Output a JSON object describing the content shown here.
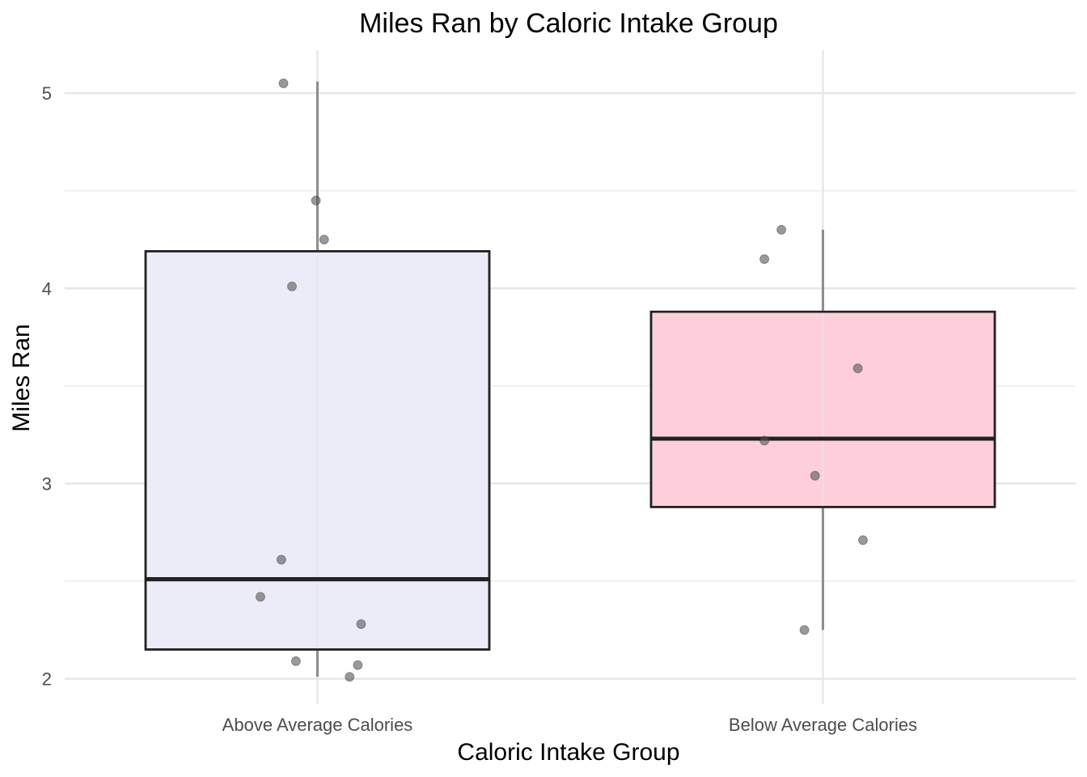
{
  "chart_data": {
    "type": "box",
    "title": "Miles Ran by Caloric Intake Group",
    "xlabel": "Caloric Intake Group",
    "ylabel": "Miles Ran",
    "categories": [
      "Above Average Calories",
      "Below Average Calories"
    ],
    "ylim": [
      1.87,
      5.22
    ],
    "yticks": [
      2,
      3,
      4,
      5
    ],
    "grid": true,
    "legend": "none",
    "boxes": [
      {
        "category": "Above Average Calories",
        "fill": "#ECEBF8",
        "whisker_low": 2.01,
        "q1": 2.15,
        "median": 2.51,
        "q3": 4.19,
        "whisker_high": 5.06
      },
      {
        "category": "Below Average Calories",
        "fill": "#FECFDB",
        "whisker_low": 2.25,
        "q1": 2.88,
        "median": 3.23,
        "q3": 3.88,
        "whisker_high": 4.3
      }
    ],
    "points": [
      {
        "category": "Above Average Calories",
        "values": [
          5.05,
          4.45,
          4.25,
          4.01,
          2.61,
          2.42,
          2.28,
          2.09,
          2.07,
          2.01
        ],
        "jitter": [
          -0.112,
          -0.005,
          0.022,
          -0.084,
          -0.119,
          -0.188,
          0.144,
          -0.071,
          0.133,
          0.106
        ]
      },
      {
        "category": "Below Average Calories",
        "values": [
          4.3,
          4.15,
          3.59,
          3.22,
          3.04,
          2.71,
          2.25
        ],
        "jitter": [
          -0.137,
          -0.193,
          0.115,
          -0.193,
          -0.026,
          0.132,
          -0.061
        ]
      }
    ],
    "colors": {
      "box_outline": "#222222",
      "point": "#555555",
      "grid": "#e6e6e6"
    }
  }
}
